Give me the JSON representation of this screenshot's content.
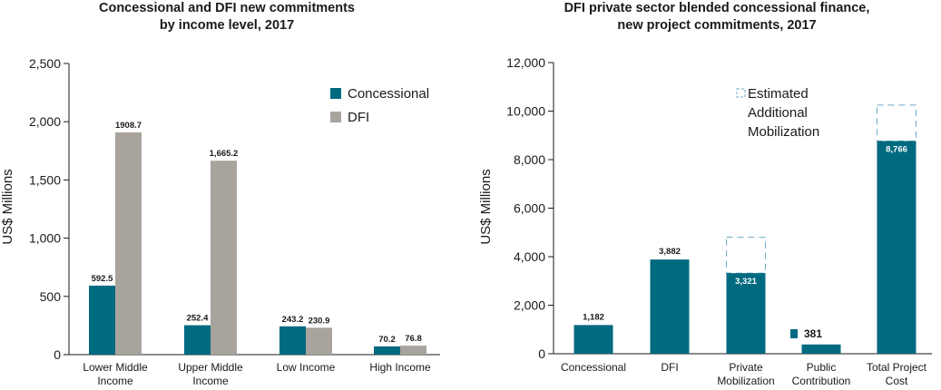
{
  "colors": {
    "concessional": "#006a80",
    "dfi": "#a8a39c",
    "estimated_border": "#6fa9c7"
  },
  "chart_data": [
    {
      "type": "bar",
      "title_lines": [
        "Concessional and DFI new commitments",
        "by income level, 2017"
      ],
      "ylabel": "US$ Millions",
      "xlabel": "",
      "ylim": [
        0,
        2500
      ],
      "yticks": [
        0,
        500,
        1000,
        1500,
        2000,
        2500
      ],
      "ytick_labels": [
        "0",
        "500",
        "1,000",
        "1,500",
        "2,000",
        "2,500"
      ],
      "grid": false,
      "legend_position": "top-right",
      "categories": [
        [
          "Lower Middle",
          "Income"
        ],
        [
          "Upper Middle",
          "Income"
        ],
        [
          "Low Income"
        ],
        [
          "High Income"
        ]
      ],
      "series": [
        {
          "name": "Concessional",
          "values": [
            592.5,
            252.4,
            243.2,
            70.2
          ],
          "labels": [
            "592.5",
            "252.4",
            "243.2",
            "70.2"
          ]
        },
        {
          "name": "DFI",
          "values": [
            1908.7,
            1665.2,
            230.9,
            76.8
          ],
          "labels": [
            "1908.7",
            "1,665.2",
            "230.9",
            "76.8"
          ]
        }
      ]
    },
    {
      "type": "bar",
      "title_lines": [
        "DFI private sector blended concessional finance,",
        "new project commitments, 2017"
      ],
      "ylabel": "US$ Millions",
      "xlabel": "",
      "ylim": [
        0,
        12000
      ],
      "yticks": [
        0,
        2000,
        4000,
        6000,
        8000,
        10000,
        12000
      ],
      "ytick_labels": [
        "0",
        "2,000",
        "4,000",
        "6,000",
        "8,000",
        "10,000",
        "12,000"
      ],
      "grid": false,
      "legend_position": "top-right",
      "legend_label_lines": [
        "Estimated",
        "Additional",
        "Mobilization"
      ],
      "categories": [
        [
          "Concessional"
        ],
        [
          "DFI"
        ],
        [
          "Private",
          "Mobilization"
        ],
        [
          "Public",
          "Contribution"
        ],
        [
          "Total Project",
          "Cost"
        ]
      ],
      "values": [
        1182,
        3882,
        3321,
        381,
        8766
      ],
      "labels": [
        "1,182",
        "3,882",
        "3,321",
        "381",
        "8,766"
      ],
      "estimated_additional_top": [
        null,
        null,
        4800,
        null,
        10250
      ]
    }
  ]
}
